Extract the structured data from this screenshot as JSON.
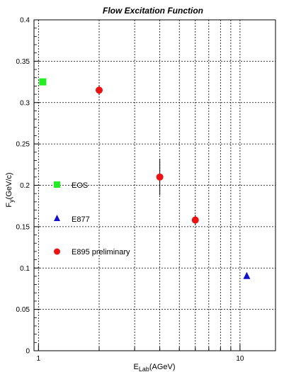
{
  "chart_data": {
    "type": "scatter",
    "title": "Flow Excitation Function",
    "xlabel": "E",
    "xlabel_sub": "Lab",
    "xlabel_unit": "(AGeV)",
    "ylabel": "F",
    "ylabel_sub": "y",
    "ylabel_unit": "(GeV/c)",
    "xscale": "log",
    "xlim": [
      0.95,
      15
    ],
    "ylim": [
      0,
      0.4
    ],
    "grid": true,
    "legend_position": "left-middle",
    "x_tick_labels": [
      {
        "value": 1,
        "label": "1"
      },
      {
        "value": 10,
        "label": "10"
      }
    ],
    "y_tick_labels": [
      {
        "value": 0,
        "label": "0"
      },
      {
        "value": 0.05,
        "label": "0.05"
      },
      {
        "value": 0.1,
        "label": "0.1"
      },
      {
        "value": 0.15,
        "label": "0.15"
      },
      {
        "value": 0.2,
        "label": "0.2"
      },
      {
        "value": 0.25,
        "label": "0.25"
      },
      {
        "value": 0.3,
        "label": "0.3"
      },
      {
        "value": 0.35,
        "label": "0.35"
      },
      {
        "value": 0.4,
        "label": "0.4"
      }
    ],
    "series": [
      {
        "name": "EOS",
        "marker": "square",
        "color": "#22ee22",
        "points": [
          {
            "x": 1.05,
            "y": 0.325
          }
        ]
      },
      {
        "name": "E877",
        "marker": "triangle",
        "color": "#1111cc",
        "points": [
          {
            "x": 10.8,
            "y": 0.091
          }
        ]
      },
      {
        "name": "E895 preliminary",
        "marker": "circle",
        "color": "#ee1111",
        "points": [
          {
            "x": 2.0,
            "y": 0.315,
            "err": 0.006
          },
          {
            "x": 4.0,
            "y": 0.21,
            "err": 0.022
          },
          {
            "x": 6.0,
            "y": 0.158,
            "err": 0.006
          }
        ]
      }
    ]
  }
}
